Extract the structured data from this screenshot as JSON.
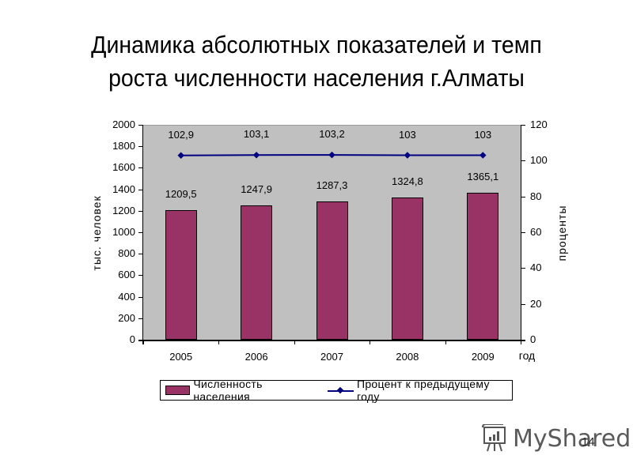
{
  "slide": {
    "title_line1": "Динамика абсолютных показателей и темп",
    "title_line2": "роста  численности населения г.Алматы",
    "page_number": "14",
    "watermark": "MyShared"
  },
  "chart_data": {
    "type": "bar",
    "title": "Динамика абсолютных показателей и темп роста численности населения г.Алматы",
    "categories": [
      "2005",
      "2006",
      "2007",
      "2008",
      "2009"
    ],
    "series": [
      {
        "name": "Численность населения",
        "type": "bar",
        "axis": "left",
        "color": "#993366",
        "values": [
          1209.5,
          1247.9,
          1287.3,
          1324.8,
          1365.1
        ],
        "labels": [
          "1209,5",
          "1247,9",
          "1287,3",
          "1324,8",
          "1365,1"
        ]
      },
      {
        "name": "Процент к предыдущему году",
        "type": "line",
        "axis": "right",
        "color": "#000080",
        "marker": "diamond",
        "values": [
          102.9,
          103.1,
          103.2,
          103,
          103
        ],
        "labels": [
          "102,9",
          "103,1",
          "103,2",
          "103",
          "103"
        ]
      }
    ],
    "xlabel": "год",
    "ylabel": "тыс. человек",
    "y2label": "проценты",
    "ylim": [
      0,
      2000
    ],
    "y2lim": [
      0,
      120
    ],
    "yticks": [
      "0",
      "200",
      "400",
      "600",
      "800",
      "1000",
      "1200",
      "1400",
      "1600",
      "1800",
      "2000"
    ],
    "y2ticks": [
      "0",
      "20",
      "40",
      "60",
      "80",
      "100",
      "120"
    ],
    "grid": false,
    "plot_background": "#c0c0c0",
    "legend_position": "bottom"
  }
}
